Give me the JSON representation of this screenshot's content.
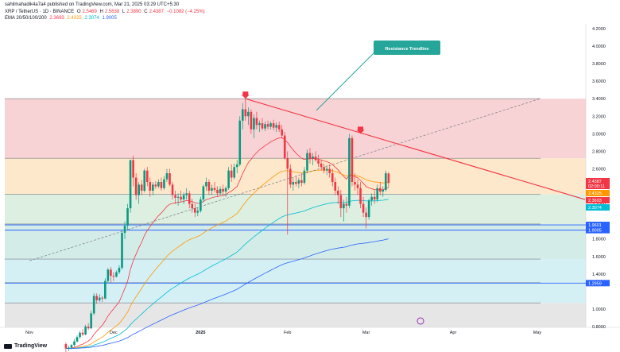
{
  "header": {
    "line1": "sahilmahadik4a7a4 published on TradingView.com, Mar 21, 2025 03:29 UTC+5:30",
    "symbol": "XRP / TetherUS · 1D · BINANCE",
    "o_label": "O",
    "o": "2.5469",
    "h_label": "H",
    "h": "2.5638",
    "l_label": "L",
    "l": "2.3890",
    "c_label": "C",
    "c": "2.4387",
    "change": "−0.1082 (−4.25%)",
    "ema_label": "EMA 20/50/100/200",
    "ema20": "2.3693",
    "ema50": "2.4325",
    "ema100": "2.3074",
    "ema200": "1.9005"
  },
  "footer": {
    "brand": "TradingView"
  },
  "colors": {
    "up": "#089981",
    "down": "#f23645",
    "ema20": "#f23645",
    "ema50": "#ff9800",
    "ema100": "#00bcd4",
    "ema200": "#2962ff",
    "zone_red": "#f8d3d5",
    "zone_orange": "#fde8cc",
    "zone_green": "#dcefe0",
    "zone_teal": "#d4ece8",
    "zone_cyan": "#d4f0f5",
    "zone_grey": "#e6e6e6",
    "trendline": "#f23645",
    "callout": "#26a69a"
  },
  "chart_data": {
    "type": "candlestick",
    "title": "XRP / TetherUS · 1D · BINANCE",
    "annotation": "Resistance Trendline",
    "y_ticks": [
      "4.2000",
      "4.0000",
      "3.8000",
      "3.6000",
      "3.4000",
      "3.2000",
      "3.0000",
      "2.8000",
      "2.6000",
      "2.2000",
      "1.8000",
      "1.6000",
      "1.4000",
      "1.0000",
      "0.8000"
    ],
    "x_ticks": [
      {
        "label": "Nov",
        "day": 0
      },
      {
        "label": "Dec",
        "day": 30
      },
      {
        "label": "2025",
        "day": 61
      },
      {
        "label": "Feb",
        "day": 92
      },
      {
        "label": "Mar",
        "day": 120
      },
      {
        "label": "Apr",
        "day": 151
      },
      {
        "label": "May",
        "day": 181
      }
    ],
    "fib_levels": [
      3.4,
      2.72,
      2.31,
      1.97,
      1.57,
      1.3,
      1.07
    ],
    "horizontal_lines": [
      {
        "price": 1.9601,
        "label": "1.9601",
        "color": "#2962ff"
      },
      {
        "price": 1.9005,
        "label": "1.9005",
        "color": "#2962ff"
      },
      {
        "price": 1.2959,
        "label": "1.2959",
        "color": "#2962ff"
      }
    ],
    "price_tags": [
      {
        "label": "2.4387",
        "sub": "02:00:11",
        "color": "#f23645",
        "price": 2.4387
      },
      {
        "label": "2.4325",
        "color": "#ff9800",
        "price": 2.4325
      },
      {
        "label": "2.3693",
        "color": "#f23645",
        "price": 2.3693
      },
      {
        "label": "2.3074",
        "color": "#00bcd4",
        "price": 2.3074
      }
    ],
    "trendline": {
      "from": {
        "day": 77,
        "price": 3.4
      },
      "to": {
        "day": 198,
        "price": 2.25
      }
    },
    "dashed_channel": {
      "from": {
        "day": 0,
        "price": 1.55
      },
      "to": {
        "day": 182,
        "price": 3.4
      }
    },
    "markers": [
      {
        "day": 77,
        "price": 3.4
      },
      {
        "day": 118,
        "price": 3.0
      }
    ],
    "candles": [
      {
        "d": 13,
        "o": 0.6,
        "h": 0.62,
        "l": 0.5,
        "c": 0.55
      },
      {
        "d": 14,
        "o": 0.55,
        "h": 0.58,
        "l": 0.52,
        "c": 0.56
      },
      {
        "d": 15,
        "o": 0.56,
        "h": 0.6,
        "l": 0.54,
        "c": 0.59
      },
      {
        "d": 16,
        "o": 0.59,
        "h": 0.66,
        "l": 0.57,
        "c": 0.63
      },
      {
        "d": 17,
        "o": 0.63,
        "h": 0.7,
        "l": 0.62,
        "c": 0.68
      },
      {
        "d": 18,
        "o": 0.68,
        "h": 0.75,
        "l": 0.66,
        "c": 0.73
      },
      {
        "d": 19,
        "o": 0.73,
        "h": 0.77,
        "l": 0.69,
        "c": 0.71
      },
      {
        "d": 20,
        "o": 0.71,
        "h": 0.82,
        "l": 0.7,
        "c": 0.8
      },
      {
        "d": 21,
        "o": 0.8,
        "h": 0.84,
        "l": 0.76,
        "c": 0.78
      },
      {
        "d": 22,
        "o": 0.78,
        "h": 0.98,
        "l": 0.77,
        "c": 0.95
      },
      {
        "d": 23,
        "o": 0.95,
        "h": 1.18,
        "l": 0.93,
        "c": 1.15
      },
      {
        "d": 24,
        "o": 1.15,
        "h": 1.18,
        "l": 1.06,
        "c": 1.1
      },
      {
        "d": 25,
        "o": 1.1,
        "h": 1.17,
        "l": 1.08,
        "c": 1.13
      },
      {
        "d": 26,
        "o": 1.13,
        "h": 1.15,
        "l": 1.08,
        "c": 1.12
      },
      {
        "d": 27,
        "o": 1.12,
        "h": 1.35,
        "l": 1.11,
        "c": 1.32
      },
      {
        "d": 28,
        "o": 1.32,
        "h": 1.47,
        "l": 1.3,
        "c": 1.45
      },
      {
        "d": 29,
        "o": 1.45,
        "h": 1.48,
        "l": 1.3,
        "c": 1.38
      },
      {
        "d": 30,
        "o": 1.38,
        "h": 1.42,
        "l": 1.32,
        "c": 1.37
      },
      {
        "d": 31,
        "o": 1.37,
        "h": 1.44,
        "l": 1.36,
        "c": 1.42
      },
      {
        "d": 32,
        "o": 1.42,
        "h": 1.5,
        "l": 1.4,
        "c": 1.47
      },
      {
        "d": 33,
        "o": 1.47,
        "h": 1.9,
        "l": 1.45,
        "c": 1.87
      },
      {
        "d": 34,
        "o": 1.87,
        "h": 2.0,
        "l": 1.8,
        "c": 1.95
      },
      {
        "d": 35,
        "o": 1.95,
        "h": 2.2,
        "l": 1.9,
        "c": 2.15
      },
      {
        "d": 36,
        "o": 2.15,
        "h": 2.7,
        "l": 2.1,
        "c": 2.7
      },
      {
        "d": 37,
        "o": 2.7,
        "h": 2.75,
        "l": 2.4,
        "c": 2.5
      },
      {
        "d": 38,
        "o": 2.5,
        "h": 2.55,
        "l": 2.25,
        "c": 2.3
      },
      {
        "d": 39,
        "o": 2.3,
        "h": 2.45,
        "l": 2.2,
        "c": 2.42
      },
      {
        "d": 40,
        "o": 2.42,
        "h": 2.47,
        "l": 2.3,
        "c": 2.35
      },
      {
        "d": 41,
        "o": 2.35,
        "h": 2.6,
        "l": 2.33,
        "c": 2.58
      },
      {
        "d": 42,
        "o": 2.58,
        "h": 2.62,
        "l": 2.4,
        "c": 2.45
      },
      {
        "d": 43,
        "o": 2.45,
        "h": 2.5,
        "l": 2.28,
        "c": 2.35
      },
      {
        "d": 44,
        "o": 2.35,
        "h": 2.45,
        "l": 2.3,
        "c": 2.42
      },
      {
        "d": 45,
        "o": 2.42,
        "h": 2.46,
        "l": 2.37,
        "c": 2.4
      },
      {
        "d": 46,
        "o": 2.4,
        "h": 2.48,
        "l": 2.38,
        "c": 2.45
      },
      {
        "d": 47,
        "o": 2.45,
        "h": 2.5,
        "l": 2.35,
        "c": 2.38
      },
      {
        "d": 48,
        "o": 2.38,
        "h": 2.52,
        "l": 2.36,
        "c": 2.48
      },
      {
        "d": 49,
        "o": 2.48,
        "h": 2.6,
        "l": 2.45,
        "c": 2.55
      },
      {
        "d": 50,
        "o": 2.55,
        "h": 2.6,
        "l": 2.4,
        "c": 2.42
      },
      {
        "d": 51,
        "o": 2.42,
        "h": 2.45,
        "l": 2.25,
        "c": 2.3
      },
      {
        "d": 52,
        "o": 2.3,
        "h": 2.35,
        "l": 2.2,
        "c": 2.27
      },
      {
        "d": 53,
        "o": 2.27,
        "h": 2.32,
        "l": 2.18,
        "c": 2.28
      },
      {
        "d": 54,
        "o": 2.28,
        "h": 2.35,
        "l": 2.22,
        "c": 2.25
      },
      {
        "d": 55,
        "o": 2.25,
        "h": 2.33,
        "l": 2.2,
        "c": 2.3
      },
      {
        "d": 56,
        "o": 2.3,
        "h": 2.38,
        "l": 2.25,
        "c": 2.32
      },
      {
        "d": 57,
        "o": 2.32,
        "h": 2.35,
        "l": 2.15,
        "c": 2.2
      },
      {
        "d": 58,
        "o": 2.2,
        "h": 2.26,
        "l": 2.1,
        "c": 2.15
      },
      {
        "d": 59,
        "o": 2.15,
        "h": 2.2,
        "l": 2.05,
        "c": 2.1
      },
      {
        "d": 60,
        "o": 2.1,
        "h": 2.16,
        "l": 2.06,
        "c": 2.12
      },
      {
        "d": 61,
        "o": 2.12,
        "h": 2.28,
        "l": 2.1,
        "c": 2.25
      },
      {
        "d": 62,
        "o": 2.25,
        "h": 2.42,
        "l": 2.22,
        "c": 2.4
      },
      {
        "d": 63,
        "o": 2.4,
        "h": 2.5,
        "l": 2.35,
        "c": 2.45
      },
      {
        "d": 64,
        "o": 2.45,
        "h": 2.48,
        "l": 2.3,
        "c": 2.35
      },
      {
        "d": 65,
        "o": 2.35,
        "h": 2.42,
        "l": 2.3,
        "c": 2.38
      },
      {
        "d": 66,
        "o": 2.38,
        "h": 2.45,
        "l": 2.33,
        "c": 2.36
      },
      {
        "d": 67,
        "o": 2.36,
        "h": 2.4,
        "l": 2.28,
        "c": 2.32
      },
      {
        "d": 68,
        "o": 2.32,
        "h": 2.4,
        "l": 2.3,
        "c": 2.37
      },
      {
        "d": 69,
        "o": 2.37,
        "h": 2.42,
        "l": 2.3,
        "c": 2.34
      },
      {
        "d": 70,
        "o": 2.34,
        "h": 2.4,
        "l": 2.28,
        "c": 2.38
      },
      {
        "d": 71,
        "o": 2.38,
        "h": 2.62,
        "l": 2.36,
        "c": 2.58
      },
      {
        "d": 72,
        "o": 2.58,
        "h": 2.65,
        "l": 2.45,
        "c": 2.5
      },
      {
        "d": 73,
        "o": 2.5,
        "h": 2.66,
        "l": 2.48,
        "c": 2.62
      },
      {
        "d": 74,
        "o": 2.62,
        "h": 2.7,
        "l": 2.55,
        "c": 2.65
      },
      {
        "d": 75,
        "o": 2.65,
        "h": 3.2,
        "l": 2.63,
        "c": 3.15
      },
      {
        "d": 76,
        "o": 3.15,
        "h": 3.35,
        "l": 3.05,
        "c": 3.28
      },
      {
        "d": 77,
        "o": 3.28,
        "h": 3.4,
        "l": 3.15,
        "c": 3.2
      },
      {
        "d": 78,
        "o": 3.2,
        "h": 3.3,
        "l": 3.1,
        "c": 3.25
      },
      {
        "d": 79,
        "o": 3.25,
        "h": 3.28,
        "l": 3.0,
        "c": 3.05
      },
      {
        "d": 80,
        "o": 3.05,
        "h": 3.22,
        "l": 2.95,
        "c": 3.18
      },
      {
        "d": 81,
        "o": 3.18,
        "h": 3.25,
        "l": 3.05,
        "c": 3.1
      },
      {
        "d": 82,
        "o": 3.1,
        "h": 3.15,
        "l": 3.02,
        "c": 3.12
      },
      {
        "d": 83,
        "o": 3.12,
        "h": 3.18,
        "l": 3.04,
        "c": 3.06
      },
      {
        "d": 84,
        "o": 3.06,
        "h": 3.14,
        "l": 3.03,
        "c": 3.11
      },
      {
        "d": 85,
        "o": 3.11,
        "h": 3.15,
        "l": 3.05,
        "c": 3.08
      },
      {
        "d": 86,
        "o": 3.08,
        "h": 3.14,
        "l": 3.05,
        "c": 3.12
      },
      {
        "d": 87,
        "o": 3.12,
        "h": 3.16,
        "l": 3.04,
        "c": 3.07
      },
      {
        "d": 88,
        "o": 3.07,
        "h": 3.13,
        "l": 3.02,
        "c": 3.1
      },
      {
        "d": 89,
        "o": 3.1,
        "h": 3.14,
        "l": 3.02,
        "c": 3.05
      },
      {
        "d": 90,
        "o": 3.05,
        "h": 3.1,
        "l": 2.95,
        "c": 2.98
      },
      {
        "d": 91,
        "o": 2.98,
        "h": 3.02,
        "l": 2.7,
        "c": 2.72
      },
      {
        "d": 92,
        "o": 2.72,
        "h": 2.8,
        "l": 1.85,
        "c": 2.6
      },
      {
        "d": 93,
        "o": 2.6,
        "h": 2.65,
        "l": 2.38,
        "c": 2.42
      },
      {
        "d": 94,
        "o": 2.42,
        "h": 2.5,
        "l": 2.35,
        "c": 2.45
      },
      {
        "d": 95,
        "o": 2.45,
        "h": 2.52,
        "l": 2.4,
        "c": 2.43
      },
      {
        "d": 96,
        "o": 2.43,
        "h": 2.5,
        "l": 2.38,
        "c": 2.47
      },
      {
        "d": 97,
        "o": 2.47,
        "h": 2.55,
        "l": 2.4,
        "c": 2.44
      },
      {
        "d": 98,
        "o": 2.44,
        "h": 2.62,
        "l": 2.42,
        "c": 2.58
      },
      {
        "d": 99,
        "o": 2.58,
        "h": 2.82,
        "l": 2.55,
        "c": 2.78
      },
      {
        "d": 100,
        "o": 2.78,
        "h": 2.84,
        "l": 2.66,
        "c": 2.72
      },
      {
        "d": 101,
        "o": 2.72,
        "h": 2.78,
        "l": 2.64,
        "c": 2.74
      },
      {
        "d": 102,
        "o": 2.74,
        "h": 2.8,
        "l": 2.68,
        "c": 2.7
      },
      {
        "d": 103,
        "o": 2.7,
        "h": 2.76,
        "l": 2.62,
        "c": 2.66
      },
      {
        "d": 104,
        "o": 2.66,
        "h": 2.7,
        "l": 2.58,
        "c": 2.62
      },
      {
        "d": 105,
        "o": 2.62,
        "h": 2.66,
        "l": 2.55,
        "c": 2.58
      },
      {
        "d": 106,
        "o": 2.58,
        "h": 2.64,
        "l": 2.53,
        "c": 2.6
      },
      {
        "d": 107,
        "o": 2.6,
        "h": 2.65,
        "l": 2.5,
        "c": 2.55
      },
      {
        "d": 108,
        "o": 2.55,
        "h": 2.6,
        "l": 2.4,
        "c": 2.45
      },
      {
        "d": 109,
        "o": 2.45,
        "h": 2.5,
        "l": 2.3,
        "c": 2.35
      },
      {
        "d": 110,
        "o": 2.35,
        "h": 2.4,
        "l": 2.2,
        "c": 2.3
      },
      {
        "d": 111,
        "o": 2.3,
        "h": 2.36,
        "l": 2.05,
        "c": 2.15
      },
      {
        "d": 112,
        "o": 2.15,
        "h": 2.25,
        "l": 2.0,
        "c": 2.2
      },
      {
        "d": 113,
        "o": 2.2,
        "h": 2.28,
        "l": 2.1,
        "c": 2.18
      },
      {
        "d": 114,
        "o": 2.18,
        "h": 3.0,
        "l": 2.15,
        "c": 2.95
      },
      {
        "d": 115,
        "o": 2.95,
        "h": 2.98,
        "l": 2.4,
        "c": 2.45
      },
      {
        "d": 116,
        "o": 2.45,
        "h": 2.55,
        "l": 2.35,
        "c": 2.42
      },
      {
        "d": 117,
        "o": 2.42,
        "h": 2.48,
        "l": 2.3,
        "c": 2.38
      },
      {
        "d": 118,
        "o": 2.38,
        "h": 2.45,
        "l": 2.15,
        "c": 2.2
      },
      {
        "d": 119,
        "o": 2.2,
        "h": 2.28,
        "l": 2.05,
        "c": 2.1
      },
      {
        "d": 120,
        "o": 2.1,
        "h": 2.16,
        "l": 1.92,
        "c": 2.05
      },
      {
        "d": 121,
        "o": 2.05,
        "h": 2.26,
        "l": 2.02,
        "c": 2.24
      },
      {
        "d": 122,
        "o": 2.24,
        "h": 2.32,
        "l": 2.18,
        "c": 2.28
      },
      {
        "d": 123,
        "o": 2.28,
        "h": 2.35,
        "l": 2.2,
        "c": 2.25
      },
      {
        "d": 124,
        "o": 2.25,
        "h": 2.42,
        "l": 2.22,
        "c": 2.38
      },
      {
        "d": 125,
        "o": 2.38,
        "h": 2.45,
        "l": 2.3,
        "c": 2.34
      },
      {
        "d": 126,
        "o": 2.34,
        "h": 2.4,
        "l": 2.28,
        "c": 2.36
      },
      {
        "d": 127,
        "o": 2.36,
        "h": 2.58,
        "l": 2.34,
        "c": 2.55
      },
      {
        "d": 128,
        "o": 2.5469,
        "h": 2.5638,
        "l": 2.389,
        "c": 2.4387
      }
    ]
  }
}
